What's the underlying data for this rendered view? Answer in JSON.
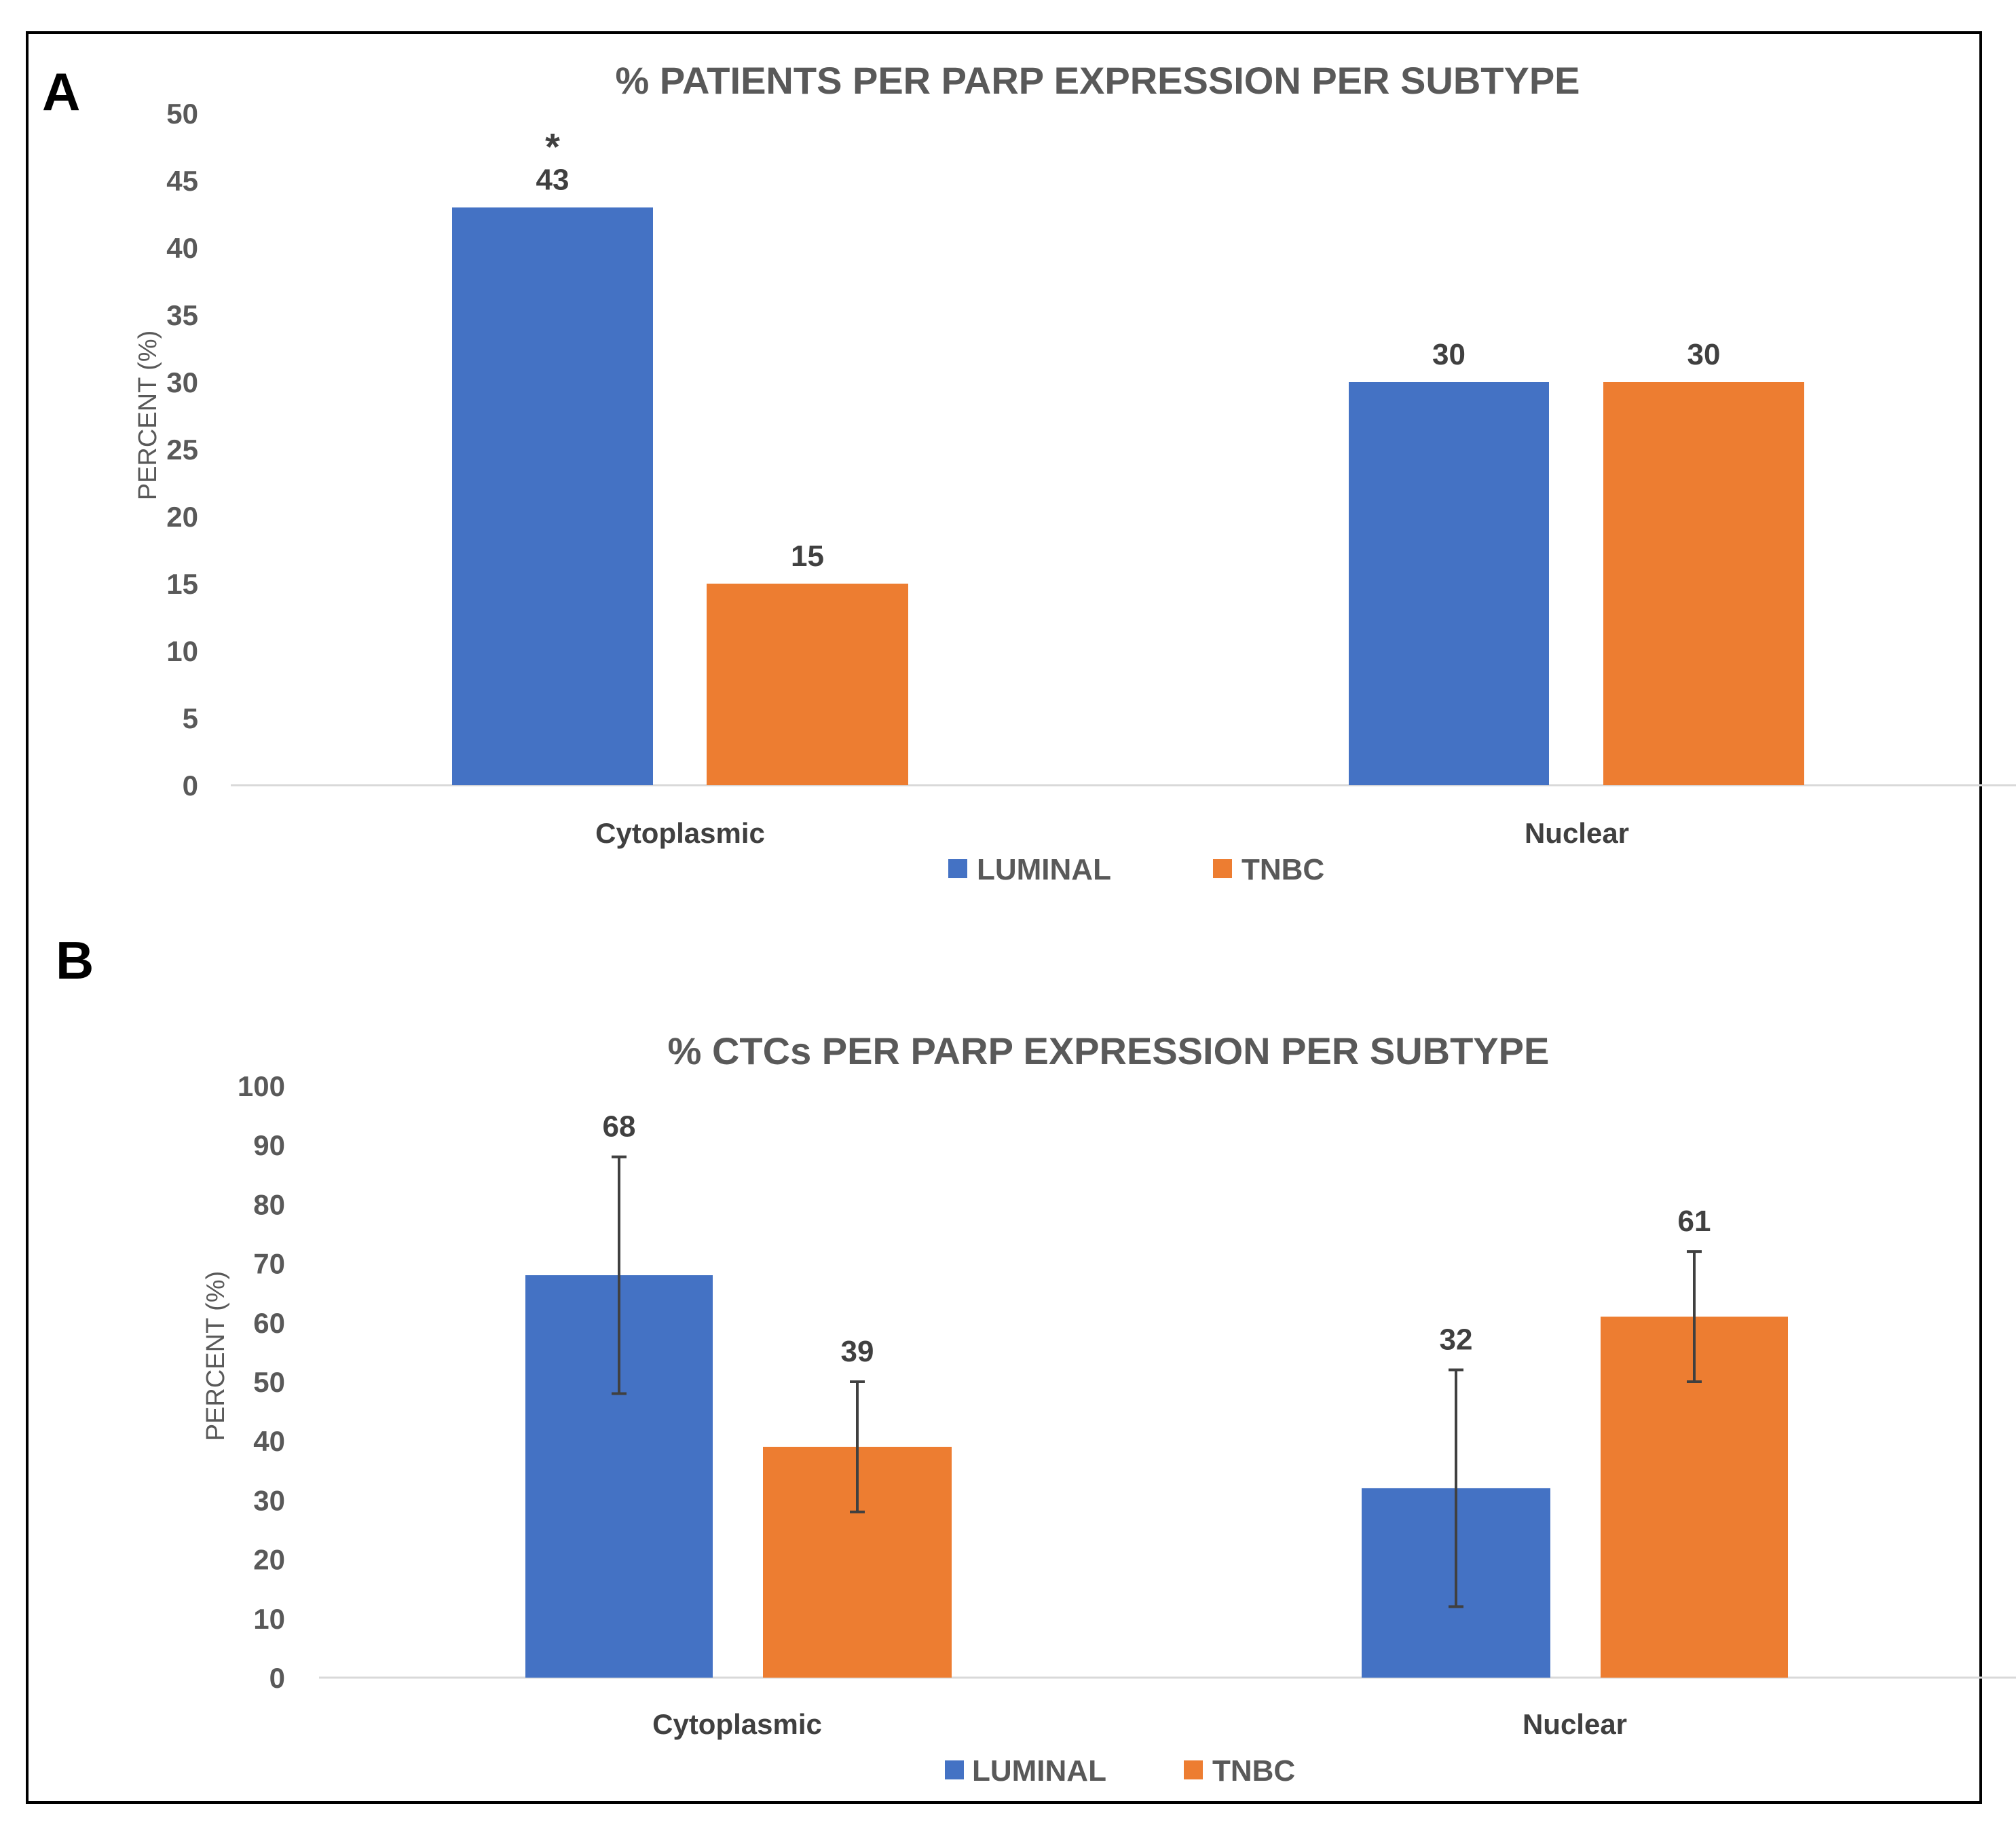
{
  "figure": {
    "colors": {
      "luminal": "#4472C4",
      "tnbc": "#ED7D31",
      "axis": "#D9D9D9",
      "errorbar": "#404040"
    }
  },
  "chart_data": [
    {
      "panel": "A",
      "type": "bar",
      "title": "% PATIENTS PER PARP EXPRESSION PER SUBTYPE",
      "xlabel": "",
      "ylabel": "PERCENT (%)",
      "ylim": [
        0,
        50
      ],
      "yticks": [
        0,
        5,
        10,
        15,
        20,
        25,
        30,
        35,
        40,
        45,
        50
      ],
      "categories": [
        "Cytoplasmic",
        "Nuclear"
      ],
      "series": [
        {
          "name": "LUMINAL",
          "color": "#4472C4",
          "values": [
            43,
            30
          ],
          "labels": [
            "43",
            "30"
          ]
        },
        {
          "name": "TNBC",
          "color": "#ED7D31",
          "values": [
            15,
            30
          ],
          "labels": [
            "15",
            "30"
          ]
        }
      ],
      "annotations": [
        {
          "text": "*",
          "series": 0,
          "category": 0
        }
      ],
      "grid": false,
      "legend": "bottom"
    },
    {
      "panel": "B",
      "type": "bar",
      "title": "% CTCs PER PARP EXPRESSION PER SUBTYPE",
      "xlabel": "",
      "ylabel": "PERCENT (%)",
      "ylim": [
        0,
        100
      ],
      "yticks": [
        0,
        10,
        20,
        30,
        40,
        50,
        60,
        70,
        80,
        90,
        100
      ],
      "categories": [
        "Cytoplasmic",
        "Nuclear"
      ],
      "series": [
        {
          "name": "LUMINAL",
          "color": "#4472C4",
          "values": [
            68,
            32
          ],
          "labels": [
            "68",
            "32"
          ],
          "error_low": [
            48,
            12
          ],
          "error_high": [
            88,
            52
          ]
        },
        {
          "name": "TNBC",
          "color": "#ED7D31",
          "values": [
            39,
            61
          ],
          "labels": [
            "39",
            "61"
          ],
          "error_low": [
            28,
            50
          ],
          "error_high": [
            50,
            72
          ]
        }
      ],
      "annotations": [],
      "grid": false,
      "legend": "bottom"
    }
  ]
}
